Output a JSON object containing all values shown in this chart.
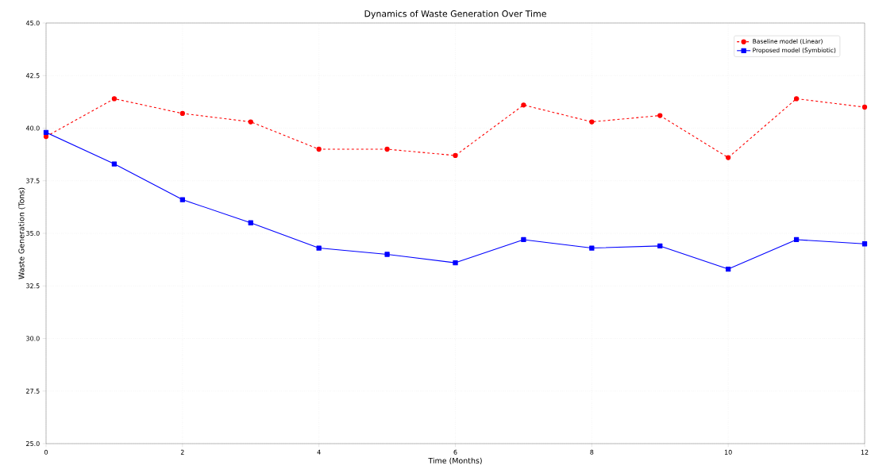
{
  "chart_data": {
    "type": "line",
    "title": "Dynamics of Waste Generation Over Time",
    "xlabel": "Time (Months)",
    "ylabel": "Waste Generation (Tons)",
    "x": [
      0,
      1,
      2,
      3,
      4,
      5,
      6,
      7,
      8,
      9,
      10,
      11,
      12
    ],
    "series": [
      {
        "name": "Baseline model (Linear)",
        "color": "#ff0000",
        "marker": "circle",
        "line_style": "dashed",
        "values": [
          39.6,
          41.4,
          40.7,
          40.3,
          39.0,
          39.0,
          38.7,
          41.1,
          40.3,
          40.6,
          38.6,
          41.4,
          41.0
        ]
      },
      {
        "name": "Proposed model (Symbiotic)",
        "color": "#0000ff",
        "marker": "square",
        "line_style": "solid",
        "values": [
          39.8,
          38.3,
          36.6,
          35.5,
          34.3,
          34.0,
          33.6,
          34.7,
          34.3,
          34.4,
          33.3,
          34.7,
          34.5
        ]
      }
    ],
    "xlim": [
      0,
      12
    ],
    "ylim": [
      25,
      45
    ],
    "xticks": [
      0,
      2,
      4,
      6,
      8,
      10,
      12
    ],
    "yticks": [
      {
        "value": 25,
        "label": "25.0"
      },
      {
        "value": 27.5,
        "label": "27.5"
      },
      {
        "value": 30,
        "label": "30.0"
      },
      {
        "value": 32.5,
        "label": "32.5"
      },
      {
        "value": 35,
        "label": "35.0"
      },
      {
        "value": 37.5,
        "label": "37.5"
      },
      {
        "value": 40,
        "label": "40.0"
      },
      {
        "value": 42.5,
        "label": "42.5"
      },
      {
        "value": 45,
        "label": "45.0"
      }
    ],
    "grid": true,
    "legend": "top right"
  }
}
